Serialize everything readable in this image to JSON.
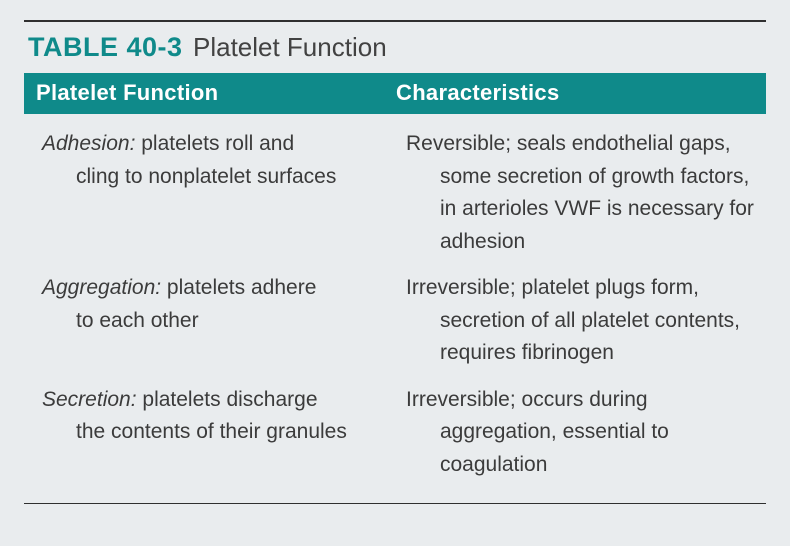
{
  "table": {
    "label": "TABLE 40-3",
    "title": "Platelet Function",
    "columns": [
      "Platelet Function",
      "Characteristics"
    ],
    "rows": [
      {
        "term": "Adhesion:",
        "def_first": " platelets roll and",
        "def_cont": "cling to nonplatelet surfaces",
        "char_first": "Reversible; seals endothelial gaps,",
        "char_cont": "some secretion of growth factors, in arterioles VWF is necessary for adhesion"
      },
      {
        "term": "Aggregation:",
        "def_first": " platelets adhere",
        "def_cont": "to each other",
        "char_first": "Irreversible; platelet plugs form,",
        "char_cont": "secretion of all platelet contents, requires fibrinogen"
      },
      {
        "term": "Secretion:",
        "def_first": " platelets discharge",
        "def_cont": "the contents of their granules",
        "char_first": "Irreversible; occurs during",
        "char_cont": "aggregation, essential to coagulation"
      }
    ],
    "colors": {
      "teal": "#0f8a8a",
      "background": "#e9ecee",
      "text": "#3b3b3b",
      "rule": "#2f2f2f",
      "header_text": "#ffffff"
    },
    "fonts": {
      "label_weight": 700,
      "label_size_pt": 20,
      "title_size_pt": 19,
      "header_size_pt": 16,
      "body_size_pt": 15,
      "body_weight": 300
    }
  }
}
